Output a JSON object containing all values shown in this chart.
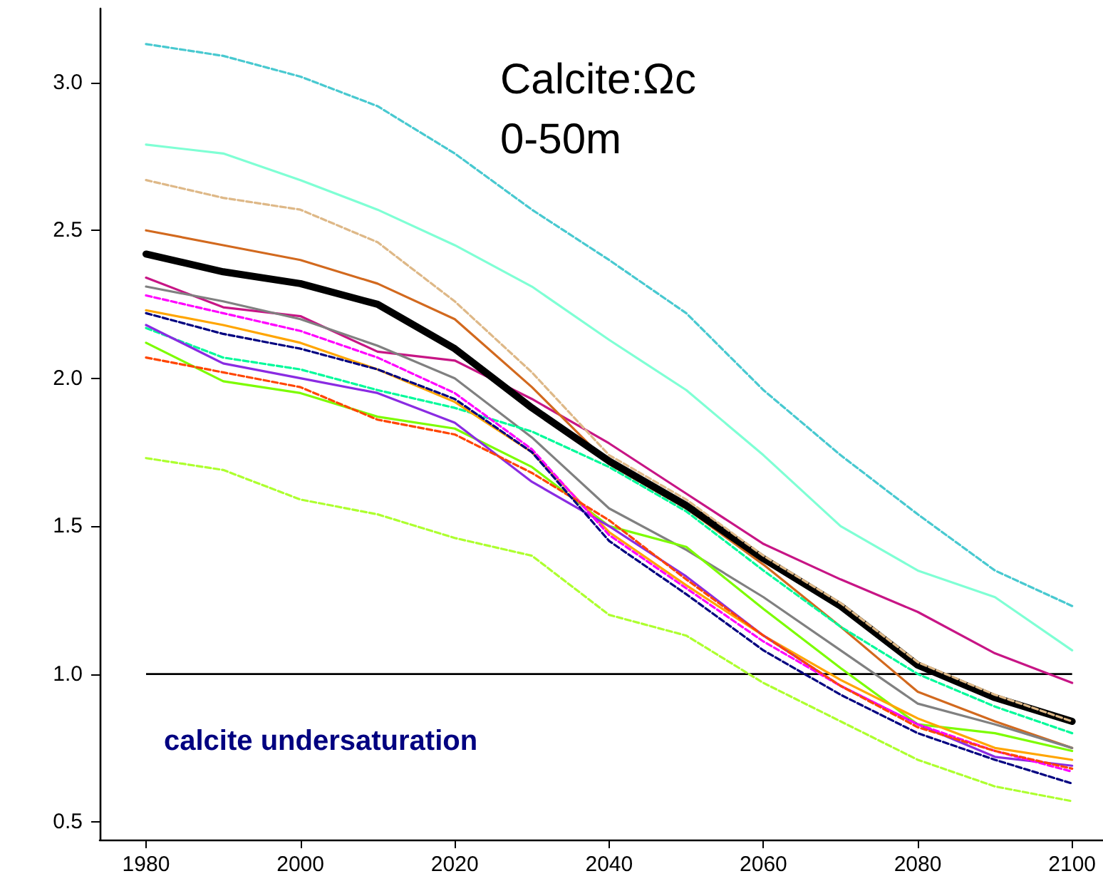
{
  "chart_data": {
    "type": "line",
    "title": "Calcite:Ωc",
    "subtitle": "0-50m",
    "annotations": [
      "calcite undersaturation"
    ],
    "x": [
      1980,
      1990,
      2000,
      2010,
      2020,
      2030,
      2040,
      2050,
      2060,
      2070,
      2080,
      2090,
      2100
    ],
    "xlim": [
      1974,
      2104
    ],
    "xticks": [
      1980,
      2000,
      2020,
      2040,
      2060,
      2080,
      2100
    ],
    "ylim": [
      0.44,
      3.25
    ],
    "yticks": [
      {
        "value": 0.5,
        "label": "0.5"
      },
      {
        "value": 1,
        "label": "1.0"
      },
      {
        "value": 1.5,
        "label": "1.5"
      },
      {
        "value": 2,
        "label": "2.0"
      },
      {
        "value": 2.5,
        "label": "2.5"
      },
      {
        "value": 3,
        "label": "3.0"
      }
    ],
    "grid": false,
    "marker": "none",
    "ref_lines": [
      {
        "axis": "y",
        "value": 1,
        "label": null,
        "color": "#000000"
      }
    ],
    "series": [
      {
        "color": "#48c9d0",
        "line_style": "dashed",
        "values": [
          3.13,
          3.09,
          3.02,
          2.92,
          2.76,
          2.57,
          2.4,
          2.22,
          1.96,
          1.74,
          1.54,
          1.35,
          1.23
        ]
      },
      {
        "color": "#7fffd4",
        "line_style": "solid",
        "values": [
          2.79,
          2.76,
          2.67,
          2.57,
          2.45,
          2.31,
          2.13,
          1.96,
          1.74,
          1.5,
          1.35,
          1.26,
          1.08
        ]
      },
      {
        "color": "#c71585",
        "line_style": "solid",
        "values": [
          2.34,
          2.24,
          2.21,
          2.09,
          2.06,
          1.93,
          1.78,
          1.61,
          1.44,
          1.32,
          1.21,
          1.07,
          0.97
        ]
      },
      {
        "color": "#d2691e",
        "line_style": "solid",
        "values": [
          2.5,
          2.45,
          2.4,
          2.32,
          2.2,
          1.97,
          1.71,
          1.56,
          1.37,
          1.16,
          0.94,
          0.84,
          0.75
        ]
      },
      {
        "color": "#808080",
        "line_style": "solid",
        "values": [
          2.31,
          2.26,
          2.2,
          2.11,
          2.0,
          1.8,
          1.56,
          1.42,
          1.26,
          1.08,
          0.9,
          0.83,
          0.75
        ]
      },
      {
        "color": "#00fa9a",
        "line_style": "dashed",
        "values": [
          2.17,
          2.07,
          2.03,
          1.96,
          1.9,
          1.82,
          1.7,
          1.55,
          1.35,
          1.16,
          1.0,
          0.89,
          0.8
        ]
      },
      {
        "color": "#7cfc00",
        "line_style": "solid",
        "values": [
          2.12,
          1.99,
          1.95,
          1.87,
          1.83,
          1.7,
          1.5,
          1.43,
          1.22,
          1.02,
          0.83,
          0.8,
          0.74
        ]
      },
      {
        "color": "#ffa500",
        "line_style": "solid",
        "values": [
          2.23,
          2.18,
          2.12,
          2.03,
          1.92,
          1.75,
          1.48,
          1.3,
          1.13,
          0.98,
          0.85,
          0.75,
          0.71
        ]
      },
      {
        "color": "#8a2be2",
        "line_style": "solid",
        "values": [
          2.18,
          2.05,
          2.0,
          1.95,
          1.85,
          1.65,
          1.5,
          1.33,
          1.13,
          0.96,
          0.83,
          0.72,
          0.69
        ]
      },
      {
        "color": "#ff00ff",
        "line_style": "dashed",
        "values": [
          2.28,
          2.22,
          2.16,
          2.07,
          1.95,
          1.76,
          1.47,
          1.29,
          1.11,
          0.96,
          0.83,
          0.74,
          0.67
        ]
      },
      {
        "color": "#ff4500",
        "line_style": "dashed",
        "values": [
          2.07,
          2.02,
          1.97,
          1.86,
          1.81,
          1.68,
          1.52,
          1.32,
          1.13,
          0.96,
          0.82,
          0.74,
          0.68
        ]
      },
      {
        "color": "#000080",
        "line_style": "dashed",
        "values": [
          2.22,
          2.15,
          2.1,
          2.03,
          1.93,
          1.75,
          1.45,
          1.27,
          1.08,
          0.93,
          0.8,
          0.71,
          0.63
        ]
      },
      {
        "color": "#adff2f",
        "line_style": "dashed",
        "values": [
          1.73,
          1.69,
          1.59,
          1.54,
          1.46,
          1.4,
          1.2,
          1.13,
          0.97,
          0.84,
          0.71,
          0.62,
          0.57
        ]
      },
      {
        "color": "#000000",
        "line_style": "solid",
        "values": [
          2.42,
          2.36,
          2.32,
          2.25,
          2.1,
          1.9,
          1.72,
          1.57,
          1.39,
          1.23,
          1.03,
          0.92,
          0.84
        ]
      },
      {
        "color": "#deb887",
        "line_style": "dashed",
        "values": [
          2.67,
          2.61,
          2.57,
          2.46,
          2.26,
          2.02,
          1.74,
          1.59,
          1.4,
          1.24,
          1.04,
          0.93,
          0.84
        ]
      }
    ]
  }
}
